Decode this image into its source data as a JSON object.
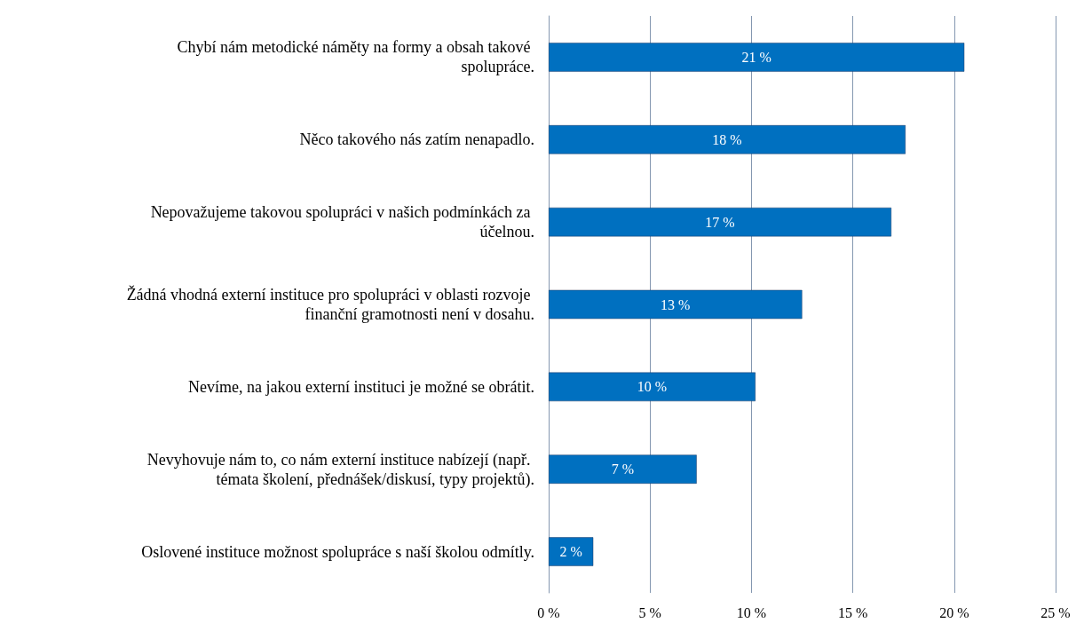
{
  "chart_data": {
    "type": "bar",
    "orientation": "horizontal",
    "categories": [
      "Chybí nám metodické náměty na formy a obsah takové spolupráce.",
      "Něco takového nás zatím nenapadlo.",
      "Nepovažujeme takovou spolupráci v našich podmínkách za účelnou.",
      "Žádná vhodná externí instituce pro spolupráci v oblasti rozvoje finanční gramotnosti není v dosahu.",
      "Nevíme, na jakou externí instituci je možné se obrátit.",
      "Nevyhovuje nám to, co nám externí instituce nabízejí (např. témata školení, přednášek/diskusí, typy projektů).",
      "Oslovené instituce možnost spolupráce s naší školou odmítly."
    ],
    "values": [
      20.5,
      17.6,
      16.9,
      12.5,
      10.2,
      7.3,
      2.2
    ],
    "value_labels": [
      "21 %",
      "18 %",
      "17 %",
      "13 %",
      "10 %",
      "7 %",
      "2 %"
    ],
    "color": "#0070c0",
    "xlim": [
      0,
      25
    ],
    "xticks": [
      {
        "value": 0,
        "label": "0 %"
      },
      {
        "value": 5,
        "label": "5 %"
      },
      {
        "value": 10,
        "label": "10 %"
      },
      {
        "value": 15,
        "label": "15 %"
      },
      {
        "value": 20,
        "label": "20 %"
      },
      {
        "value": 25,
        "label": "25 %"
      }
    ],
    "grid": "x"
  }
}
